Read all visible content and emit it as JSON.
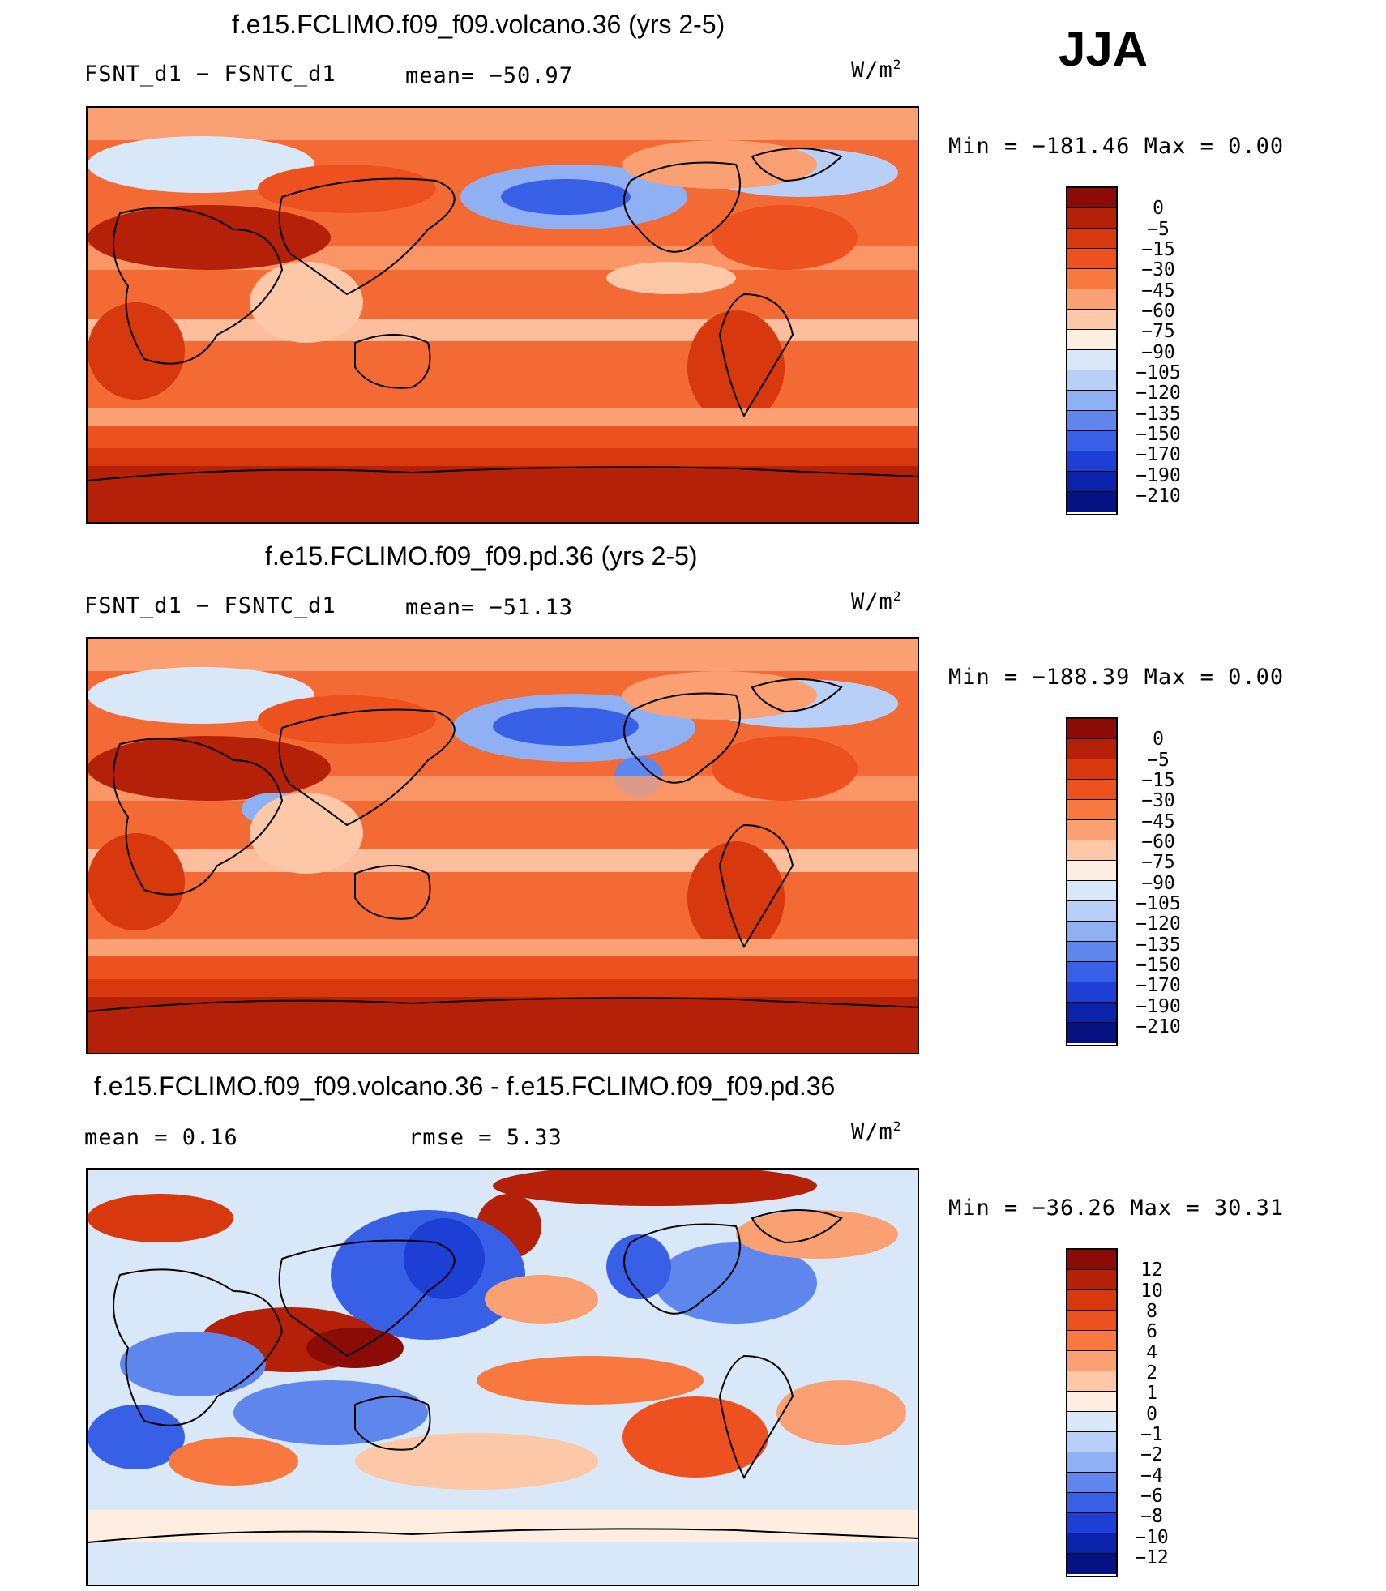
{
  "season": "JJA",
  "units_base": "W/m",
  "units_exp": "2",
  "panels": [
    {
      "title": "f.e15.FCLIMO.f09_f09.volcano.36 (yrs 2-5)",
      "left_label": "FSNT_d1  −  FSNTC_d1",
      "stat_label": "mean=  −50.97",
      "minmax": "Min  =  −181.46  Max  =     0.00",
      "levels": [
        "0",
        "−5",
        "−15",
        "−30",
        "−45",
        "−60",
        "−75",
        "−90",
        "−105",
        "−120",
        "−135",
        "−150",
        "−170",
        "−190",
        "−210"
      ]
    },
    {
      "title": "f.e15.FCLIMO.f09_f09.pd.36 (yrs 2-5)",
      "left_label": "FSNT_d1  −  FSNTC_d1",
      "stat_label": "mean=  −51.13",
      "minmax": "Min  =  −188.39  Max  =     0.00",
      "levels": [
        "0",
        "−5",
        "−15",
        "−30",
        "−45",
        "−60",
        "−75",
        "−90",
        "−105",
        "−120",
        "−135",
        "−150",
        "−170",
        "−190",
        "−210"
      ]
    },
    {
      "title": "f.e15.FCLIMO.f09_f09.volcano.36 - f.e15.FCLIMO.f09_f09.pd.36",
      "left_label": "mean  =    0.16",
      "stat_label": "rmse  =    5.33",
      "minmax": "Min  =  −36.26  Max  =   30.31",
      "levels": [
        "12",
        "10",
        "8",
        "6",
        "4",
        "2",
        "1",
        "0",
        "−1",
        "−2",
        "−4",
        "−6",
        "−8",
        "−10",
        "−12"
      ]
    }
  ],
  "colors": {
    "abs_scale": [
      "#8b0b06",
      "#b52008",
      "#d8380e",
      "#ee5120",
      "#f87840",
      "#fba072",
      "#fdc8a8",
      "#feeee2",
      "#d8e8f8",
      "#b8d0f8",
      "#90b0f4",
      "#5f86ec",
      "#3860e6",
      "#1d3fd6",
      "#0b23ab",
      "#061282"
    ],
    "diff_scale": [
      "#8b0b06",
      "#b52008",
      "#d8380e",
      "#ee5120",
      "#f87840",
      "#fba072",
      "#fdc8a8",
      "#feeee2",
      "#d8e8f8",
      "#b8d0f8",
      "#90b0f4",
      "#5f86ec",
      "#3860e6",
      "#1d3fd6",
      "#0b23ab",
      "#061282"
    ],
    "coastline": "#000000"
  }
}
